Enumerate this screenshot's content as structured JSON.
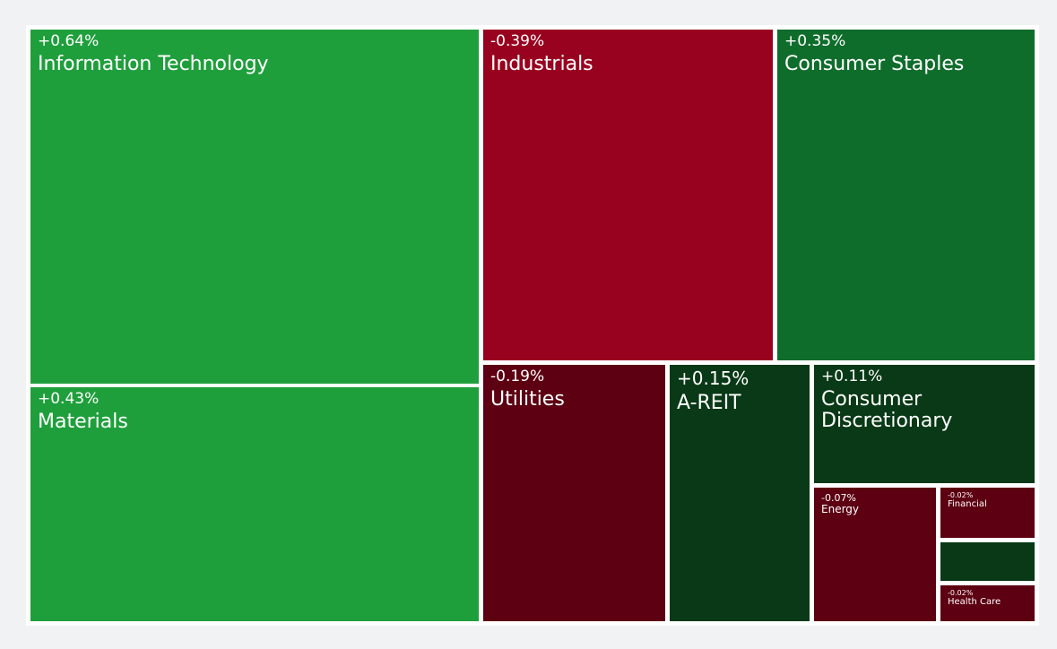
{
  "chart_data": {
    "type": "treemap",
    "tiles": [
      {
        "label": "Information Technology",
        "change": "+0.64%",
        "value": 0.64,
        "color": "#1f9f3c"
      },
      {
        "label": "Materials",
        "change": "+0.43%",
        "value": 0.43,
        "color": "#1f9f3c"
      },
      {
        "label": "Industrials",
        "change": "-0.39%",
        "value": -0.39,
        "color": "#98021f"
      },
      {
        "label": "Consumer Staples",
        "change": "+0.35%",
        "value": 0.35,
        "color": "#0f6d2b"
      },
      {
        "label": "Utilities",
        "change": "-0.19%",
        "value": -0.19,
        "color": "#5c0012"
      },
      {
        "label": "A-REIT",
        "change": "+0.15%",
        "value": 0.15,
        "color": "#093916"
      },
      {
        "label": "Consumer Discretionary",
        "change": "+0.11%",
        "value": 0.11,
        "color": "#093916"
      },
      {
        "label": "Energy",
        "change": "-0.07%",
        "value": -0.07,
        "color": "#5c0012"
      },
      {
        "label": "Financial",
        "change": "-0.02%",
        "value": -0.02,
        "color": "#5c0012"
      },
      {
        "label": "",
        "change": "",
        "value": null,
        "color": "#093916"
      },
      {
        "label": "Health Care",
        "change": "-0.02%",
        "value": -0.02,
        "color": "#5c0012"
      }
    ]
  }
}
